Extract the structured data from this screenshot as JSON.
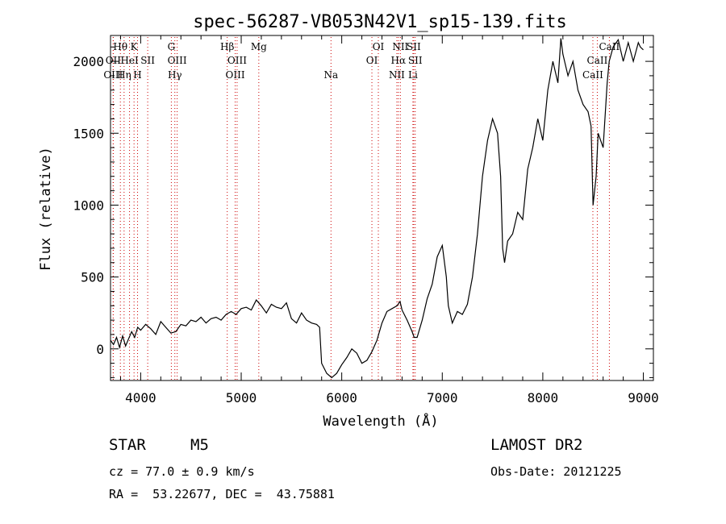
{
  "chart_data": {
    "type": "line",
    "title": "spec-56287-VB053N42V1_sp15-139.fits",
    "xlabel": "Wavelength (Å)",
    "ylabel": "Flux (relative)",
    "xlim": [
      3700,
      9100
    ],
    "ylim": [
      -220,
      2180
    ],
    "grid": false,
    "x_ticks": [
      4000,
      5000,
      6000,
      7000,
      8000,
      9000
    ],
    "y_ticks": [
      0,
      500,
      1000,
      1500,
      2000
    ],
    "x_tick_labels": [
      "4000",
      "5000",
      "6000",
      "7000",
      "8000",
      "9000"
    ],
    "y_tick_labels": [
      "0",
      "500",
      "1000",
      "1500",
      "2000"
    ],
    "series": [
      {
        "x": [
          3700,
          3730,
          3760,
          3790,
          3820,
          3850,
          3880,
          3910,
          3940,
          3970,
          4000,
          4050,
          4100,
          4150,
          4200,
          4250,
          4300,
          4350,
          4400,
          4450,
          4500,
          4550,
          4600,
          4650,
          4700,
          4750,
          4800,
          4850,
          4900,
          4950,
          5000,
          5050,
          5100,
          5150,
          5200,
          5250,
          5300,
          5350,
          5400,
          5450,
          5500,
          5550,
          5600,
          5650,
          5700,
          5750,
          5780,
          5800,
          5850,
          5900,
          5950,
          6000,
          6050,
          6100,
          6150,
          6200,
          6250,
          6300,
          6350,
          6400,
          6450,
          6500,
          6550,
          6580,
          6600,
          6650,
          6700,
          6720,
          6750,
          6800,
          6850,
          6900,
          6950,
          7000,
          7040,
          7050,
          7060,
          7100,
          7150,
          7200,
          7250,
          7300,
          7350,
          7400,
          7450,
          7500,
          7550,
          7580,
          7600,
          7620,
          7650,
          7700,
          7750,
          7800,
          7850,
          7900,
          7950,
          8000,
          8050,
          8100,
          8150,
          8180,
          8200,
          8250,
          8300,
          8350,
          8400,
          8450,
          8480,
          8500,
          8530,
          8550,
          8600,
          8640,
          8660,
          8700,
          8750,
          8800,
          8850,
          8900,
          8950,
          8970,
          9000
        ],
        "y": [
          60,
          30,
          80,
          10,
          90,
          20,
          70,
          120,
          80,
          150,
          130,
          170,
          140,
          100,
          190,
          150,
          110,
          120,
          170,
          160,
          200,
          190,
          220,
          180,
          210,
          220,
          200,
          240,
          260,
          240,
          280,
          290,
          270,
          340,
          300,
          250,
          310,
          290,
          280,
          320,
          210,
          180,
          250,
          200,
          180,
          170,
          150,
          -100,
          -170,
          -200,
          -170,
          -110,
          -60,
          0,
          -30,
          -100,
          -80,
          -20,
          60,
          180,
          260,
          280,
          300,
          330,
          270,
          200,
          120,
          80,
          80,
          200,
          350,
          450,
          640,
          720,
          500,
          400,
          300,
          180,
          260,
          240,
          310,
          500,
          800,
          1200,
          1450,
          1600,
          1500,
          1200,
          700,
          600,
          750,
          800,
          950,
          900,
          1250,
          1400,
          1600,
          1450,
          1800,
          2000,
          1850,
          2160,
          2050,
          1900,
          2000,
          1800,
          1700,
          1650,
          1550,
          1000,
          1200,
          1500,
          1400,
          1850,
          2000,
          2100,
          2150,
          2000,
          2130,
          2000,
          2130,
          2100,
          2080
        ]
      }
    ],
    "spectral_lines": [
      {
        "name": "Hθ",
        "x": 3798,
        "row": 1
      },
      {
        "name": "K",
        "x": 3934,
        "row": 1
      },
      {
        "name": "OII",
        "x": 3727,
        "row": 2
      },
      {
        "name": "HeI",
        "x": 3889,
        "row": 2
      },
      {
        "name": "SII",
        "x": 4070,
        "row": 2
      },
      {
        "name": "OIII",
        "x": 3727,
        "row": 3
      },
      {
        "name": "Hη",
        "x": 3835,
        "row": 3
      },
      {
        "name": "H",
        "x": 3969,
        "row": 3
      },
      {
        "name": "G",
        "x": 4305,
        "row": 1
      },
      {
        "name": "OIII",
        "x": 4363,
        "row": 2
      },
      {
        "name": "Hγ",
        "x": 4340,
        "row": 3
      },
      {
        "name": "Hβ",
        "x": 4861,
        "row": 1
      },
      {
        "name": "OIII",
        "x": 4959,
        "row": 2
      },
      {
        "name": "OIII",
        "x": 4940,
        "row": 3
      },
      {
        "name": "Mg",
        "x": 5175,
        "row": 1
      },
      {
        "name": "Na",
        "x": 5893,
        "row": 3
      },
      {
        "name": "OI",
        "x": 6364,
        "row": 1
      },
      {
        "name": "OI",
        "x": 6300,
        "row": 2
      },
      {
        "name": "NII",
        "x": 6583,
        "row": 1
      },
      {
        "name": "SII",
        "x": 6716,
        "row": 1
      },
      {
        "name": "Hα",
        "x": 6563,
        "row": 2
      },
      {
        "name": "SII",
        "x": 6731,
        "row": 2
      },
      {
        "name": "NII",
        "x": 6548,
        "row": 3
      },
      {
        "name": "Li",
        "x": 6708,
        "row": 3
      },
      {
        "name": "CaII",
        "x": 8662,
        "row": 1
      },
      {
        "name": "CaII",
        "x": 8542,
        "row": 2
      },
      {
        "name": "CaII",
        "x": 8498,
        "row": 3
      }
    ],
    "line_marker_color": "#cc0000"
  },
  "info": {
    "object_class": "STAR",
    "subclass": "M5",
    "survey": "LAMOST DR2",
    "cz": "cz = 77.0 ± 0.9 km/s",
    "obs_date": "Obs-Date: 20121225",
    "coords": "RA =  53.22677, DEC =  43.75881"
  }
}
